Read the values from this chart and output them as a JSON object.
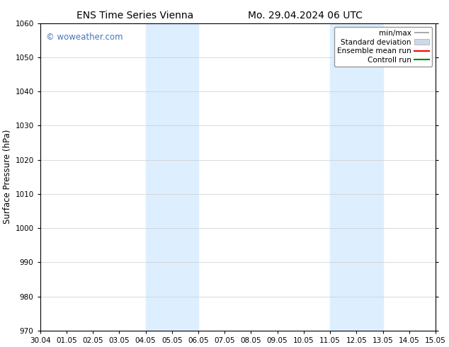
{
  "title_left": "ENS Time Series Vienna",
  "title_right": "Mo. 29.04.2024 06 UTC",
  "ylabel": "Surface Pressure (hPa)",
  "ylim": [
    970,
    1060
  ],
  "yticks": [
    970,
    980,
    990,
    1000,
    1010,
    1020,
    1030,
    1040,
    1050,
    1060
  ],
  "xtick_labels": [
    "30.04",
    "01.05",
    "02.05",
    "03.05",
    "04.05",
    "05.05",
    "06.05",
    "07.05",
    "08.05",
    "09.05",
    "10.05",
    "11.05",
    "12.05",
    "13.05",
    "14.05",
    "15.05"
  ],
  "shaded_regions": [
    {
      "x_start": "2024-05-04",
      "x_end": "2024-05-06"
    },
    {
      "x_start": "2024-05-11",
      "x_end": "2024-05-13"
    }
  ],
  "shaded_color": "#ddeeff",
  "background_color": "#ffffff",
  "watermark_text": "© woweather.com",
  "watermark_color": "#4477bb",
  "legend_items": [
    {
      "label": "min/max",
      "color": "#999999",
      "style": "minmax"
    },
    {
      "label": "Standard deviation",
      "color": "#ccd9e8",
      "style": "rect"
    },
    {
      "label": "Ensemble mean run",
      "color": "#ff0000",
      "style": "line"
    },
    {
      "label": "Controll run",
      "color": "#008800",
      "style": "line"
    }
  ],
  "title_fontsize": 10,
  "tick_fontsize": 7.5,
  "ylabel_fontsize": 8.5,
  "watermark_fontsize": 8.5,
  "legend_fontsize": 7.5
}
